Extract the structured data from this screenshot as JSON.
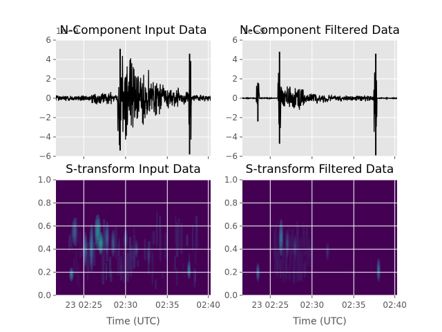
{
  "chart_data": [
    {
      "type": "line",
      "title": "N-Component Input Data",
      "scale_label": "1e−9",
      "ylim": [
        -6,
        6
      ],
      "yticks": [
        "6",
        "4",
        "2",
        "0",
        "−2",
        "−4",
        "−6"
      ],
      "ytick_values": [
        6,
        4,
        2,
        0,
        -2,
        -4,
        -6
      ],
      "grid": true,
      "series": [
        {
          "color": "#000000",
          "segments": [
            {
              "x0": 0.0,
              "x1": 0.23,
              "amp": 0.3
            },
            {
              "x0": 0.23,
              "x1": 0.36,
              "amp": 0.7
            },
            {
              "x0": 0.36,
              "x1": 0.4,
              "amp": 0.4
            },
            {
              "x0": 0.4,
              "x1": 0.42,
              "amp": 5.5
            },
            {
              "x0": 0.42,
              "x1": 0.52,
              "amp": 4.5
            },
            {
              "x0": 0.52,
              "x1": 0.6,
              "amp": 3.2
            },
            {
              "x0": 0.6,
              "x1": 0.7,
              "amp": 2.0
            },
            {
              "x0": 0.7,
              "x1": 0.8,
              "amp": 1.2
            },
            {
              "x0": 0.8,
              "x1": 0.86,
              "amp": 0.8
            },
            {
              "x0": 0.86,
              "x1": 0.875,
              "amp": 5.0
            },
            {
              "x0": 0.875,
              "x1": 1.0,
              "amp": 0.35
            }
          ],
          "spikes": [
            {
              "x": 0.415,
              "top": 5.1,
              "bottom": -5.4
            },
            {
              "x": 0.864,
              "top": 4.6,
              "bottom": -5.8
            }
          ]
        }
      ]
    },
    {
      "type": "line",
      "title": "N-Component Filtered Data",
      "scale_label": "1e−9",
      "ylim": [
        -6,
        6
      ],
      "yticks": [
        "6",
        "4",
        "2",
        "0",
        "−2",
        "−4",
        "−6"
      ],
      "ytick_values": [
        6,
        4,
        2,
        0,
        -2,
        -4,
        -6
      ],
      "grid": true,
      "series": [
        {
          "color": "#000000",
          "segments": [
            {
              "x0": 0.0,
              "x1": 0.09,
              "amp": 0.05
            },
            {
              "x0": 0.09,
              "x1": 0.11,
              "amp": 2.1
            },
            {
              "x0": 0.11,
              "x1": 0.23,
              "amp": 0.05
            },
            {
              "x0": 0.23,
              "x1": 0.25,
              "amp": 4.8
            },
            {
              "x0": 0.25,
              "x1": 0.4,
              "amp": 1.3
            },
            {
              "x0": 0.4,
              "x1": 0.55,
              "amp": 0.6
            },
            {
              "x0": 0.55,
              "x1": 0.85,
              "amp": 0.35
            },
            {
              "x0": 0.85,
              "x1": 0.87,
              "amp": 4.7
            },
            {
              "x0": 0.87,
              "x1": 1.0,
              "amp": 0.05
            }
          ],
          "spikes": [
            {
              "x": 0.1,
              "top": 1.6,
              "bottom": -2.4
            },
            {
              "x": 0.24,
              "top": 4.8,
              "bottom": -4.7
            },
            {
              "x": 0.862,
              "top": 4.6,
              "bottom": -5.9
            }
          ]
        }
      ]
    },
    {
      "type": "heatmap",
      "title": "S-transform Input Data",
      "ylim": [
        0,
        1
      ],
      "yticks": [
        "1.0",
        "0.8",
        "0.6",
        "0.4",
        "0.2",
        "0.0"
      ],
      "ytick_values": [
        1.0,
        0.8,
        0.6,
        0.4,
        0.2,
        0.0
      ],
      "xticks": [
        "23 02:25",
        "02:30",
        "02:35",
        "02:40"
      ],
      "xlabel": "Time (UTC)",
      "grid": true,
      "colormap": [
        "#440154",
        "#3b528b",
        "#21918c",
        "#5ec962",
        "#fde725"
      ],
      "blobs": [
        {
          "x": 0.1,
          "y": 0.18,
          "w": 0.012,
          "h": 0.06,
          "v": 0.45
        },
        {
          "x": 0.12,
          "y": 0.55,
          "w": 0.015,
          "h": 0.12,
          "v": 0.35
        },
        {
          "x": 0.19,
          "y": 0.4,
          "w": 0.012,
          "h": 0.15,
          "v": 0.35
        },
        {
          "x": 0.23,
          "y": 0.42,
          "w": 0.012,
          "h": 0.2,
          "v": 0.4
        },
        {
          "x": 0.27,
          "y": 0.55,
          "w": 0.018,
          "h": 0.15,
          "v": 0.55
        },
        {
          "x": 0.29,
          "y": 0.45,
          "w": 0.015,
          "h": 0.1,
          "v": 0.6
        },
        {
          "x": 0.33,
          "y": 0.5,
          "w": 0.012,
          "h": 0.14,
          "v": 0.35
        },
        {
          "x": 0.37,
          "y": 0.45,
          "w": 0.012,
          "h": 0.12,
          "v": 0.3
        },
        {
          "x": 0.45,
          "y": 0.48,
          "w": 0.012,
          "h": 0.1,
          "v": 0.25
        },
        {
          "x": 0.52,
          "y": 0.4,
          "w": 0.01,
          "h": 0.08,
          "v": 0.22
        },
        {
          "x": 0.6,
          "y": 0.35,
          "w": 0.01,
          "h": 0.1,
          "v": 0.2
        },
        {
          "x": 0.86,
          "y": 0.22,
          "w": 0.01,
          "h": 0.08,
          "v": 0.45
        }
      ],
      "band": {
        "y0": 0.05,
        "y1": 0.72,
        "x0": 0.08,
        "x1": 0.92,
        "v": 0.12
      }
    },
    {
      "type": "heatmap",
      "title": "S-transform Filtered Data",
      "ylim": [
        0,
        1
      ],
      "yticks": [
        "1.0",
        "0.8",
        "0.6",
        "0.4",
        "0.2",
        "0.0"
      ],
      "ytick_values": [
        1.0,
        0.8,
        0.6,
        0.4,
        0.2,
        0.0
      ],
      "xticks": [
        "23 02:25",
        "02:30",
        "02:35",
        "02:40"
      ],
      "xlabel": "Time (UTC)",
      "grid": true,
      "colormap": [
        "#440154",
        "#3b528b",
        "#21918c",
        "#5ec962",
        "#fde725"
      ],
      "blobs": [
        {
          "x": 0.1,
          "y": 0.2,
          "w": 0.01,
          "h": 0.08,
          "v": 0.35
        },
        {
          "x": 0.25,
          "y": 0.5,
          "w": 0.012,
          "h": 0.16,
          "v": 0.45
        },
        {
          "x": 0.29,
          "y": 0.45,
          "w": 0.01,
          "h": 0.12,
          "v": 0.25
        },
        {
          "x": 0.34,
          "y": 0.42,
          "w": 0.01,
          "h": 0.1,
          "v": 0.2
        },
        {
          "x": 0.55,
          "y": 0.38,
          "w": 0.01,
          "h": 0.08,
          "v": 0.15
        },
        {
          "x": 0.88,
          "y": 0.22,
          "w": 0.01,
          "h": 0.1,
          "v": 0.4
        }
      ],
      "band": {
        "y0": 0.1,
        "y1": 0.6,
        "x0": 0.2,
        "x1": 0.45,
        "v": 0.07
      }
    }
  ]
}
